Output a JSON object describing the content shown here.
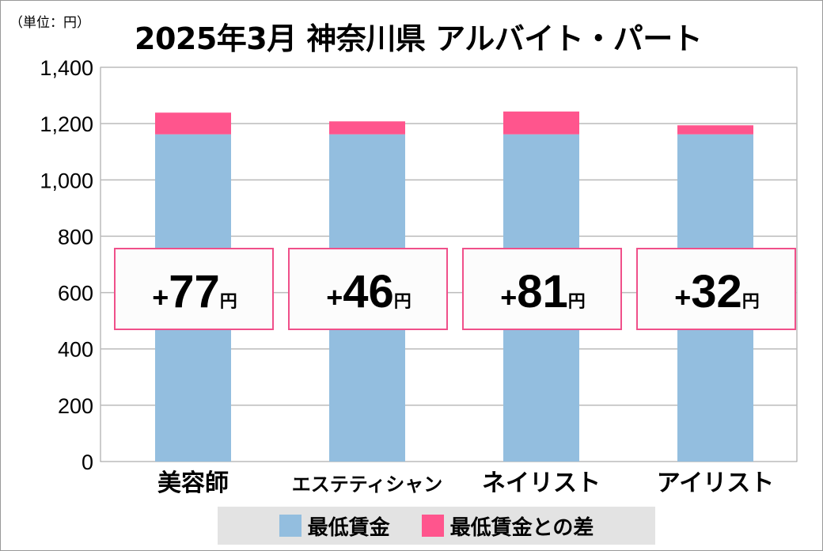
{
  "unit_label": "（単位：円）",
  "chart_data": {
    "type": "bar",
    "stacked": true,
    "title": "2025年3月 神奈川県 アルバイト・パート",
    "categories": [
      "美容師",
      "エステティシャン",
      "ネイリスト",
      "アイリスト"
    ],
    "series": [
      {
        "name": "最低賃金",
        "color": "#93bedf",
        "values": [
          1162,
          1162,
          1162,
          1162
        ]
      },
      {
        "name": "最低賃金との差",
        "color": "#ff558d",
        "values": [
          77,
          46,
          81,
          32
        ]
      }
    ],
    "annotations": [
      "+77円",
      "+46円",
      "+81円",
      "+32円"
    ],
    "annotation_parts": [
      {
        "sign": "+",
        "num": "77",
        "unit": "円"
      },
      {
        "sign": "+",
        "num": "46",
        "unit": "円"
      },
      {
        "sign": "+",
        "num": "81",
        "unit": "円"
      },
      {
        "sign": "+",
        "num": "32",
        "unit": "円"
      }
    ],
    "ylim": [
      0,
      1400
    ],
    "yticks": [
      0,
      200,
      400,
      600,
      800,
      1000,
      1200,
      1400
    ],
    "ytick_labels": [
      "0",
      "200",
      "400",
      "600",
      "800",
      "1,000",
      "1,200",
      "1,400"
    ],
    "grid": true,
    "legend_position": "bottom"
  }
}
